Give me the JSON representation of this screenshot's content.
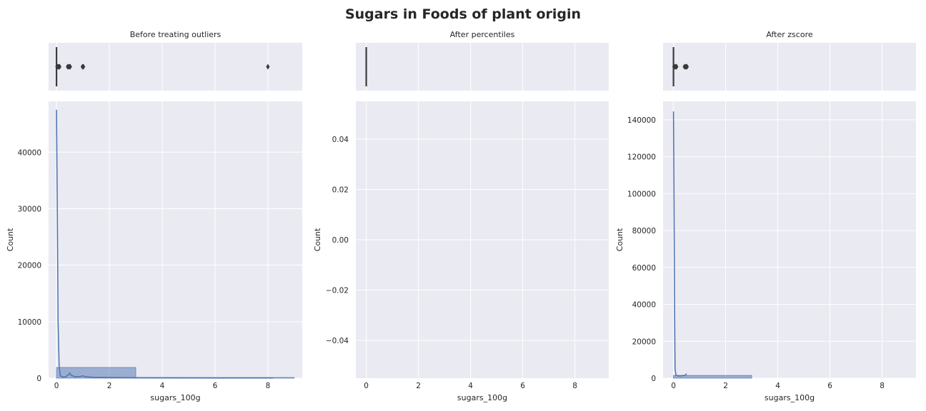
{
  "figure": {
    "title": "Sugars in Foods of plant origin"
  },
  "chart_data": [
    {
      "type": "histogram-with-boxplot",
      "title": "Before treating outliers",
      "xlabel": "sugars_100g",
      "ylabel": "Count",
      "xlim": [
        -0.3,
        9.3
      ],
      "ylim": [
        0,
        49000
      ],
      "xticks": [
        "0",
        "2",
        "4",
        "6",
        "8"
      ],
      "yticks": [
        "0",
        "10000",
        "20000",
        "30000",
        "40000"
      ],
      "bars": [
        {
          "x0": 0,
          "x1": 3,
          "count": 1900
        },
        {
          "x0": 3,
          "x1": 6,
          "count": 50
        },
        {
          "x0": 6,
          "x1": 9,
          "count": 20
        }
      ],
      "kde": [
        [
          0,
          47500
        ],
        [
          0.03,
          30000
        ],
        [
          0.06,
          10000
        ],
        [
          0.1,
          2000
        ],
        [
          0.15,
          400
        ],
        [
          0.25,
          200
        ],
        [
          0.35,
          250
        ],
        [
          0.45,
          600
        ],
        [
          0.5,
          900
        ],
        [
          0.55,
          500
        ],
        [
          0.7,
          250
        ],
        [
          0.9,
          300
        ],
        [
          1.0,
          400
        ],
        [
          1.1,
          250
        ],
        [
          1.4,
          150
        ],
        [
          2.5,
          100
        ],
        [
          4,
          60
        ],
        [
          6,
          40
        ],
        [
          8,
          30
        ],
        [
          8.2,
          20
        ]
      ],
      "box": {
        "q1": 0,
        "median": 0,
        "q3": 0,
        "whisker_low": 0,
        "whisker_high": 0,
        "outliers": [
          0.02,
          0.05,
          0.08,
          0.1,
          0.12,
          0.42,
          0.45,
          0.48,
          0.5,
          0.52,
          0.98,
          1.0,
          1.02,
          8.0
        ]
      }
    },
    {
      "type": "histogram-with-boxplot",
      "title": "After percentiles",
      "xlabel": "sugars_100g",
      "ylabel": "Count",
      "xlim": [
        -0.4,
        9.3
      ],
      "ylim": [
        -0.055,
        0.055
      ],
      "xticks": [
        "0",
        "2",
        "4",
        "6",
        "8"
      ],
      "yticks": [
        "−0.04",
        "−0.02",
        "0.00",
        "0.02",
        "0.04"
      ],
      "bars": [],
      "kde": [],
      "box": {
        "q1": 0,
        "median": 0,
        "q3": 0,
        "whisker_low": 0,
        "whisker_high": 0,
        "outliers": []
      }
    },
    {
      "type": "histogram-with-boxplot",
      "title": "After zscore",
      "xlabel": "sugars_100g",
      "ylabel": "Count",
      "xlim": [
        -0.4,
        9.3
      ],
      "ylim": [
        0,
        150000
      ],
      "xticks": [
        "0",
        "2",
        "4",
        "6",
        "8"
      ],
      "yticks": [
        "0",
        "20000",
        "40000",
        "60000",
        "80000",
        "100000",
        "120000",
        "140000"
      ],
      "bars": [
        {
          "x0": 0,
          "x1": 3,
          "count": 1500
        }
      ],
      "kde": [
        [
          0,
          144500
        ],
        [
          0.02,
          100000
        ],
        [
          0.04,
          40000
        ],
        [
          0.06,
          5000
        ],
        [
          0.1,
          1500
        ],
        [
          0.2,
          1200
        ],
        [
          0.3,
          1300
        ],
        [
          0.4,
          1500
        ],
        [
          0.45,
          1500
        ],
        [
          0.5,
          2500
        ]
      ],
      "box": {
        "q1": 0,
        "median": 0,
        "q3": 0,
        "whisker_low": 0,
        "whisker_high": 0,
        "outliers": [
          0.02,
          0.05,
          0.08,
          0.1,
          0.12,
          0.42,
          0.45,
          0.48,
          0.5,
          0.52
        ]
      }
    }
  ],
  "colors": {
    "bar": "#4c72b0",
    "line": "#4c72b0",
    "panel": "#eaeaf2",
    "text": "#262626"
  }
}
